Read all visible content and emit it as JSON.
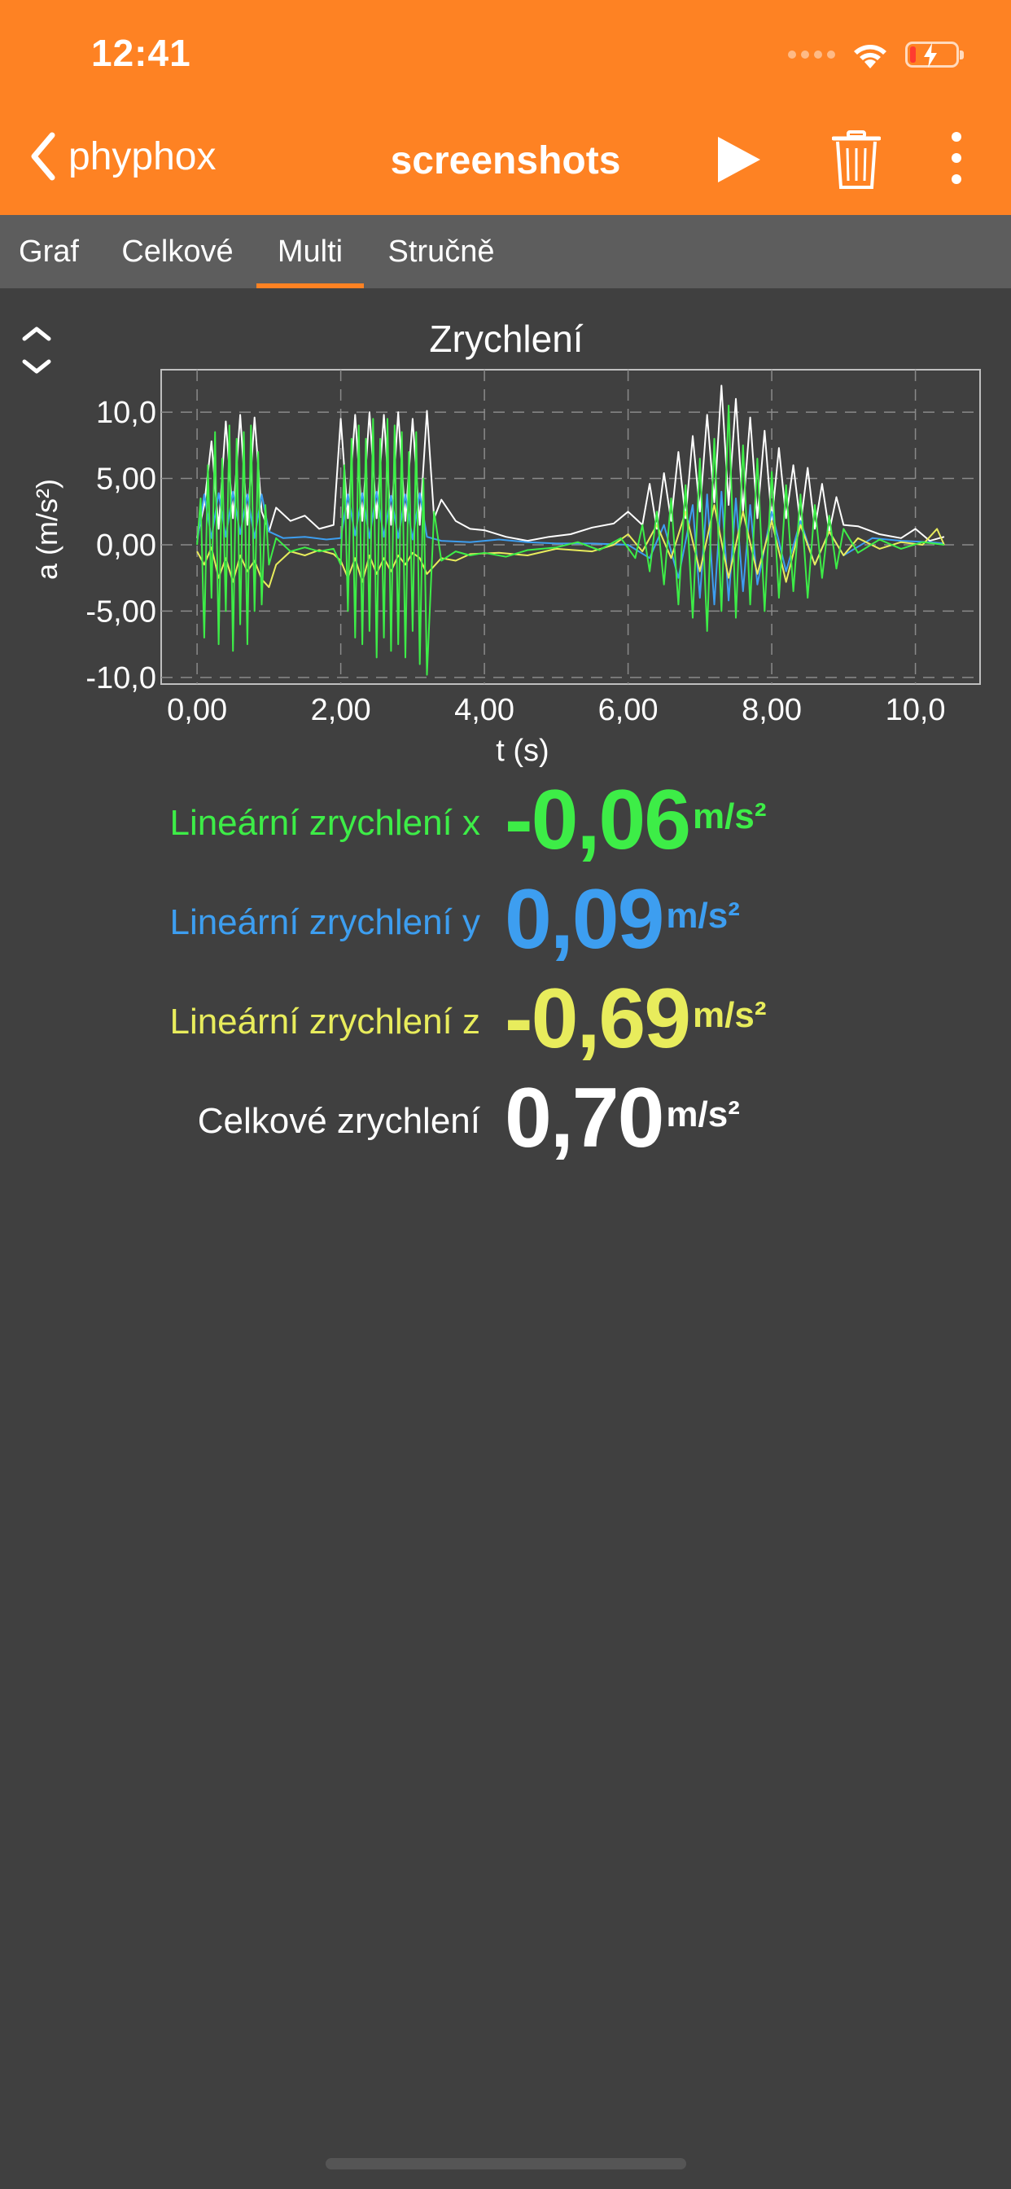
{
  "status_bar": {
    "time": "12:41",
    "icons": [
      "signal-dots-icon",
      "wifi-icon",
      "battery-charging-icon"
    ]
  },
  "nav": {
    "back_label": "phyphox",
    "title": "screenshots",
    "icons": [
      "chevron-left-icon",
      "play-icon",
      "trash-icon",
      "more-vertical-icon"
    ]
  },
  "tabs": [
    {
      "label": "Graf",
      "active": false
    },
    {
      "label": "Celkové",
      "active": false
    },
    {
      "label": "Multi",
      "active": true
    },
    {
      "label": "Stručně",
      "active": false
    }
  ],
  "colors": {
    "header": "#fe8223",
    "tabbar": "#5d5d5d",
    "background": "#404040",
    "x": "#3ded47",
    "y": "#3d9ef0",
    "z": "#e8ec5c",
    "total": "#ffffff"
  },
  "chart_data": {
    "type": "line",
    "title": "Zrychlení",
    "xlabel": "t (s)",
    "ylabel": "a (m/s²)",
    "xlim": [
      -0.5,
      10.9
    ],
    "ylim": [
      -10.5,
      13.2
    ],
    "x_ticks": [
      "0,00",
      "2,00",
      "4,00",
      "6,00",
      "8,00",
      "10,0"
    ],
    "x_tick_values": [
      0,
      2,
      4,
      6,
      8,
      10
    ],
    "y_ticks": [
      "10,0",
      "5,00",
      "0,00",
      "-5,00",
      "-10,0"
    ],
    "y_tick_values": [
      10,
      5,
      0,
      -5,
      -10
    ],
    "grid": true,
    "series": [
      {
        "key": "total",
        "color": "#ffffff",
        "x": [
          0.0,
          0.1,
          0.2,
          0.3,
          0.4,
          0.5,
          0.6,
          0.7,
          0.8,
          0.9,
          1.0,
          1.1,
          1.3,
          1.5,
          1.7,
          1.9,
          2.0,
          2.1,
          2.2,
          2.3,
          2.4,
          2.5,
          2.6,
          2.7,
          2.8,
          2.9,
          3.0,
          3.1,
          3.2,
          3.3,
          3.4,
          3.6,
          3.8,
          4.0,
          4.3,
          4.6,
          4.9,
          5.2,
          5.5,
          5.8,
          6.0,
          6.2,
          6.3,
          6.4,
          6.5,
          6.6,
          6.7,
          6.8,
          6.9,
          7.0,
          7.1,
          7.2,
          7.3,
          7.4,
          7.5,
          7.6,
          7.7,
          7.8,
          7.9,
          8.0,
          8.1,
          8.2,
          8.3,
          8.4,
          8.5,
          8.6,
          8.7,
          8.8,
          8.9,
          9.0,
          9.2,
          9.5,
          9.8,
          10.0,
          10.2,
          10.4
        ],
        "y": [
          0.5,
          3.0,
          7.8,
          1.2,
          9.3,
          2.0,
          9.8,
          1.5,
          9.6,
          2.5,
          1.0,
          2.8,
          1.8,
          2.2,
          1.2,
          1.5,
          9.5,
          2.0,
          9.8,
          1.8,
          10.0,
          2.0,
          9.8,
          1.5,
          10.0,
          1.8,
          9.5,
          1.5,
          10.1,
          2.0,
          3.4,
          1.8,
          1.2,
          1.1,
          0.6,
          0.3,
          0.6,
          0.8,
          1.3,
          1.6,
          2.5,
          1.5,
          4.6,
          1.2,
          5.4,
          1.8,
          7.0,
          2.0,
          8.2,
          2.5,
          9.8,
          3.2,
          12.0,
          3.0,
          11.0,
          2.5,
          9.6,
          2.0,
          8.6,
          1.8,
          7.3,
          2.0,
          6.0,
          1.5,
          5.8,
          1.2,
          4.6,
          1.0,
          3.6,
          1.5,
          1.4,
          0.8,
          0.5,
          1.2,
          0.3,
          0.6
        ]
      },
      {
        "key": "y",
        "color": "#3d9ef0",
        "x": [
          0.0,
          0.1,
          0.2,
          0.3,
          0.4,
          0.5,
          0.6,
          0.7,
          0.8,
          0.9,
          1.0,
          1.2,
          1.5,
          1.8,
          2.0,
          2.1,
          2.2,
          2.3,
          2.4,
          2.5,
          2.6,
          2.7,
          2.8,
          2.9,
          3.0,
          3.1,
          3.2,
          3.4,
          3.8,
          4.2,
          4.6,
          5.0,
          5.5,
          6.0,
          6.3,
          6.5,
          6.7,
          6.9,
          7.0,
          7.1,
          7.2,
          7.3,
          7.4,
          7.5,
          7.6,
          7.7,
          7.8,
          8.0,
          8.2,
          8.4,
          8.6,
          8.8,
          9.0,
          9.4,
          9.8,
          10.2,
          10.4
        ],
        "y": [
          0.2,
          3.8,
          0.5,
          3.9,
          0.6,
          4.0,
          0.8,
          3.8,
          0.5,
          3.8,
          1.0,
          0.5,
          0.6,
          0.4,
          0.5,
          3.8,
          0.7,
          3.9,
          0.5,
          4.0,
          0.6,
          3.7,
          0.5,
          3.8,
          0.4,
          3.9,
          0.6,
          0.3,
          0.2,
          0.4,
          0.2,
          0.1,
          0.1,
          0.0,
          -1.0,
          1.5,
          -2.5,
          3.0,
          -4.0,
          3.8,
          -4.5,
          4.0,
          -4.2,
          3.5,
          -3.5,
          3.0,
          -3.0,
          2.5,
          -2.0,
          1.8,
          -1.5,
          1.0,
          -0.8,
          0.5,
          0.3,
          0.2,
          0.1
        ]
      },
      {
        "key": "z",
        "color": "#e8ec5c",
        "x": [
          0.0,
          0.1,
          0.2,
          0.3,
          0.4,
          0.5,
          0.6,
          0.7,
          0.8,
          0.9,
          1.0,
          1.1,
          1.3,
          1.5,
          1.7,
          1.9,
          2.0,
          2.1,
          2.2,
          2.3,
          2.4,
          2.5,
          2.6,
          2.7,
          2.8,
          2.9,
          3.0,
          3.1,
          3.2,
          3.4,
          3.6,
          3.8,
          4.2,
          4.6,
          5.0,
          5.5,
          5.8,
          6.0,
          6.2,
          6.4,
          6.6,
          6.8,
          7.0,
          7.2,
          7.4,
          7.6,
          7.8,
          8.0,
          8.2,
          8.4,
          8.6,
          8.8,
          9.0,
          9.2,
          9.5,
          9.8,
          10.1,
          10.3,
          10.4
        ],
        "y": [
          -0.5,
          -1.5,
          -0.2,
          -2.5,
          -1.0,
          -2.8,
          -0.8,
          -2.0,
          -1.2,
          -2.6,
          -3.2,
          -1.5,
          -0.5,
          -0.8,
          -0.4,
          -0.7,
          -1.2,
          -2.5,
          -1.0,
          -2.8,
          -0.8,
          -2.2,
          -1.0,
          -2.0,
          -0.8,
          -1.5,
          -0.6,
          -1.0,
          -2.2,
          -1.0,
          -1.2,
          -0.7,
          -0.6,
          -0.8,
          -0.3,
          -0.5,
          0.0,
          0.8,
          -0.5,
          1.5,
          -1.0,
          2.5,
          -2.0,
          3.0,
          -2.5,
          2.5,
          -2.2,
          1.8,
          -2.8,
          1.5,
          -1.5,
          1.0,
          -0.8,
          0.5,
          -0.3,
          0.2,
          0.0,
          1.2,
          0.0
        ]
      },
      {
        "key": "x",
        "color": "#3ded47",
        "x": [
          0.0,
          0.05,
          0.1,
          0.15,
          0.2,
          0.25,
          0.3,
          0.35,
          0.4,
          0.45,
          0.5,
          0.55,
          0.6,
          0.65,
          0.7,
          0.75,
          0.8,
          0.85,
          0.9,
          0.95,
          1.0,
          1.1,
          1.3,
          1.5,
          1.7,
          1.9,
          2.0,
          2.05,
          2.1,
          2.15,
          2.2,
          2.25,
          2.3,
          2.35,
          2.4,
          2.45,
          2.5,
          2.55,
          2.6,
          2.65,
          2.7,
          2.75,
          2.8,
          2.85,
          2.9,
          2.95,
          3.0,
          3.05,
          3.1,
          3.15,
          3.2,
          3.3,
          3.4,
          3.6,
          3.8,
          4.0,
          4.3,
          4.6,
          5.0,
          5.3,
          5.6,
          5.9,
          6.1,
          6.2,
          6.3,
          6.4,
          6.5,
          6.6,
          6.7,
          6.8,
          6.9,
          7.0,
          7.1,
          7.2,
          7.3,
          7.4,
          7.5,
          7.6,
          7.7,
          7.8,
          7.9,
          8.0,
          8.1,
          8.2,
          8.3,
          8.4,
          8.5,
          8.6,
          8.7,
          8.8,
          8.9,
          9.0,
          9.2,
          9.5,
          9.8,
          10.1,
          10.4
        ],
        "y": [
          0.0,
          3.5,
          -7.0,
          6.0,
          -4.0,
          8.5,
          -7.5,
          6.5,
          -5.0,
          9.0,
          -8.0,
          8.0,
          -6.0,
          8.5,
          -7.5,
          9.0,
          -5.0,
          7.0,
          -4.5,
          3.0,
          -1.5,
          0.5,
          -0.5,
          -0.2,
          -0.5,
          -0.3,
          -1.5,
          6.0,
          -5.0,
          8.0,
          -7.0,
          9.0,
          -7.5,
          8.0,
          -6.5,
          9.5,
          -8.5,
          8.0,
          -7.0,
          9.5,
          -8.0,
          9.0,
          -7.5,
          8.5,
          -8.5,
          7.0,
          -6.5,
          8.5,
          -9.0,
          5.0,
          -9.8,
          2.5,
          -1.2,
          -0.5,
          -0.8,
          -0.6,
          -0.9,
          -0.4,
          -0.2,
          0.2,
          -0.4,
          0.5,
          -1.0,
          1.5,
          -2.0,
          2.5,
          -3.0,
          3.5,
          -4.5,
          4.5,
          -5.5,
          6.5,
          -6.5,
          8.0,
          -5.0,
          10.5,
          -5.5,
          7.5,
          -4.5,
          6.5,
          -5.0,
          5.5,
          -4.0,
          4.5,
          -3.5,
          3.8,
          -4.0,
          3.0,
          -2.5,
          2.2,
          -1.8,
          1.2,
          -0.6,
          0.4,
          -0.3,
          0.2,
          0.0
        ]
      }
    ]
  },
  "values": [
    {
      "label": "Lineární zrychlení x",
      "value": "-0,06",
      "unit": "m/s²",
      "color": "#3ded47"
    },
    {
      "label": "Lineární zrychlení y",
      "value": "0,09",
      "unit": "m/s²",
      "color": "#3d9ef0"
    },
    {
      "label": "Lineární zrychlení z",
      "value": "-0,69",
      "unit": "m/s²",
      "color": "#e8ec5c"
    },
    {
      "label": "Celkové zrychlení",
      "value": "0,70",
      "unit": "m/s²",
      "color": "#ffffff"
    }
  ]
}
